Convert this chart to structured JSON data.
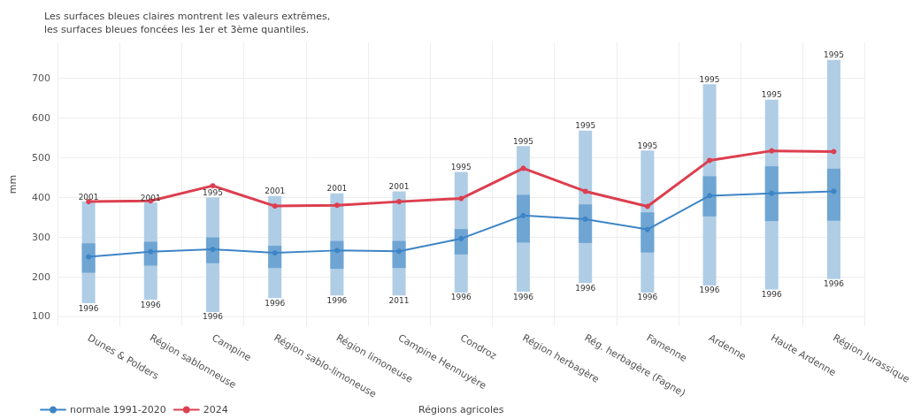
{
  "chart_data": {
    "type": "line",
    "title": "Les surfaces bleues claires montrent les valeurs extrêmes,\nles surfaces bleues foncées les 1er et 3ème quantiles.",
    "xlabel": "Régions agricoles",
    "ylabel": "mm",
    "categories": [
      "Dunes & Polders",
      "Région sablonneuse",
      "Campine",
      "Région sablo-limoneuse",
      "Région limoneuse",
      "Campine Hennuyère",
      "Condroz",
      "Région herbagère",
      "Rég. herbagère (Fagne)",
      "Famenne",
      "Ardenne",
      "Haute Ardenne",
      "Région Jurassique"
    ],
    "series": [
      {
        "type": "bar",
        "color": "#b0cde6",
        "base": [
          133,
          142,
          111,
          146,
          153,
          153,
          160,
          162,
          184,
          160,
          178,
          168,
          194
        ],
        "values": [
          256,
          245,
          289,
          257,
          257,
          262,
          304,
          367,
          384,
          358,
          507,
          478,
          552
        ]
      },
      {
        "type": "bar",
        "color": "#6fa5d3",
        "base": [
          210,
          228,
          234,
          222,
          220,
          222,
          256,
          286,
          285,
          261,
          352,
          340,
          341
        ],
        "values": [
          74,
          60,
          65,
          56,
          70,
          68,
          64,
          120,
          97,
          101,
          101,
          138,
          131
        ]
      },
      {
        "name": "normale 1991-2020",
        "color": "#3d85c6",
        "values": [
          250,
          263,
          269,
          260,
          266,
          264,
          296,
          354,
          345,
          319,
          404,
          410,
          415
        ]
      },
      {
        "name": "2024",
        "color": "#dc3f4f",
        "values": [
          389,
          391,
          429,
          378,
          380,
          389,
          397,
          473,
          415,
          377,
          493,
          517,
          515
        ]
      }
    ],
    "annotations": [
      {
        "text": "2001",
        "x": "Dunes & Polders",
        "y": 389
      },
      {
        "text": "1996",
        "x": "Dunes & Polders",
        "y": 133
      },
      {
        "text": "2001",
        "x": "Région sablonneuse",
        "y": 387
      },
      {
        "text": "1996",
        "x": "Région sablonneuse",
        "y": 142
      },
      {
        "text": "1995",
        "x": "Campine",
        "y": 400
      },
      {
        "text": "1996",
        "x": "Campine",
        "y": 111
      },
      {
        "text": "2001",
        "x": "Région sablo-limoneuse",
        "y": 403
      },
      {
        "text": "1996",
        "x": "Région sablo-limoneuse",
        "y": 146
      },
      {
        "text": "2001",
        "x": "Région limoneuse",
        "y": 410
      },
      {
        "text": "1996",
        "x": "Région limoneuse",
        "y": 153
      },
      {
        "text": "2001",
        "x": "Campine Hennuyère",
        "y": 415
      },
      {
        "text": "2011",
        "x": "Campine Hennuyère",
        "y": 153
      },
      {
        "text": "1995",
        "x": "Condroz",
        "y": 464
      },
      {
        "text": "1996",
        "x": "Condroz",
        "y": 160
      },
      {
        "text": "1995",
        "x": "Région herbagère",
        "y": 529
      },
      {
        "text": "1996",
        "x": "Région herbagère",
        "y": 162
      },
      {
        "text": "1995",
        "x": "Rég. herbagère (Fagne)",
        "y": 568
      },
      {
        "text": "1996",
        "x": "Rég. herbagère (Fagne)",
        "y": 184
      },
      {
        "text": "1995",
        "x": "Famenne",
        "y": 518
      },
      {
        "text": "1996",
        "x": "Famenne",
        "y": 160
      },
      {
        "text": "1995",
        "x": "Ardenne",
        "y": 685
      },
      {
        "text": "1996",
        "x": "Ardenne",
        "y": 178
      },
      {
        "text": "1995",
        "x": "Haute Ardenne",
        "y": 646
      },
      {
        "text": "1996",
        "x": "Haute Ardenne",
        "y": 168
      },
      {
        "text": "1995",
        "x": "Région Jurassique",
        "y": 746
      },
      {
        "text": "1996",
        "x": "Région Jurassique",
        "y": 194
      }
    ],
    "ylim": [
      75,
      790
    ],
    "yticks": [
      100,
      200,
      300,
      400,
      500,
      600,
      700
    ],
    "grid": true,
    "legend": "bottom left",
    "marker": "circle",
    "line_style": "solid"
  }
}
